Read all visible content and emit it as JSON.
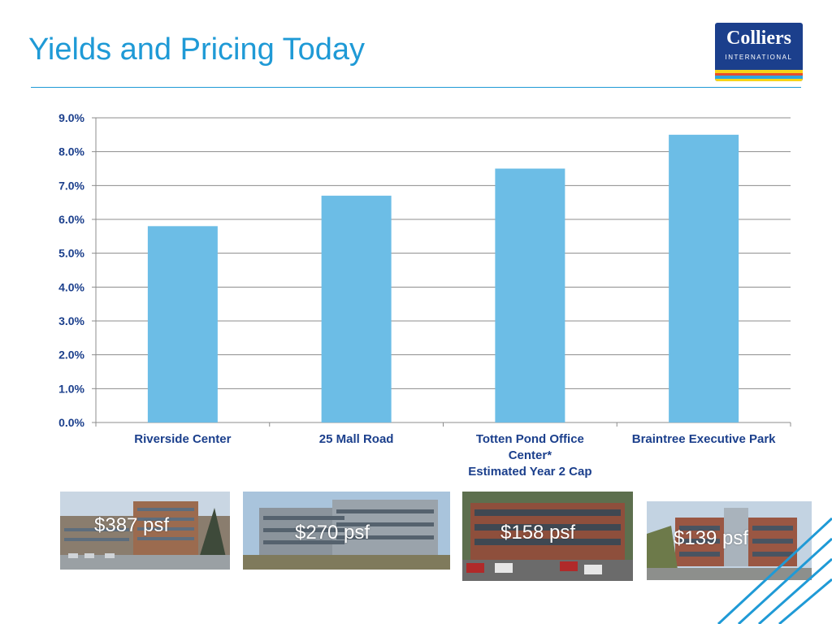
{
  "header": {
    "title": "Yields and Pricing Today"
  },
  "logo": {
    "name": "Colliers",
    "sub": "INTERNATIONAL",
    "background_color": "#1b3f8c",
    "stripe_colors": [
      "#f7d417",
      "#e94e2a",
      "#2fa7e0",
      "#f7d417"
    ]
  },
  "colors": {
    "title": "#1f9ad6",
    "bar": "#6cbde6",
    "axis_text": "#1b3f8c",
    "gridline": "#8c8c8c"
  },
  "chart_data": {
    "type": "bar",
    "categories": [
      [
        "Riverside Center"
      ],
      [
        "25 Mall Road"
      ],
      [
        "Totten Pond Office",
        "Center*",
        "Estimated Year 2 Cap"
      ],
      [
        "Braintree Executive Park"
      ]
    ],
    "values": [
      5.8,
      6.7,
      7.5,
      8.5
    ],
    "unit": "%",
    "ylim": [
      0,
      9
    ],
    "yticks": [
      "0.0%",
      "1.0%",
      "2.0%",
      "3.0%",
      "4.0%",
      "5.0%",
      "6.0%",
      "7.0%",
      "8.0%",
      "9.0%"
    ],
    "grid": true,
    "title": "",
    "xlabel": "",
    "ylabel": ""
  },
  "properties": [
    {
      "price": "$387 psf",
      "photo_icon": "office-building-photo"
    },
    {
      "price": "$270 psf",
      "photo_icon": "office-building-photo"
    },
    {
      "price": "$158 psf",
      "photo_icon": "office-building-photo"
    },
    {
      "price": "$139 psf",
      "photo_icon": "office-building-photo"
    }
  ]
}
